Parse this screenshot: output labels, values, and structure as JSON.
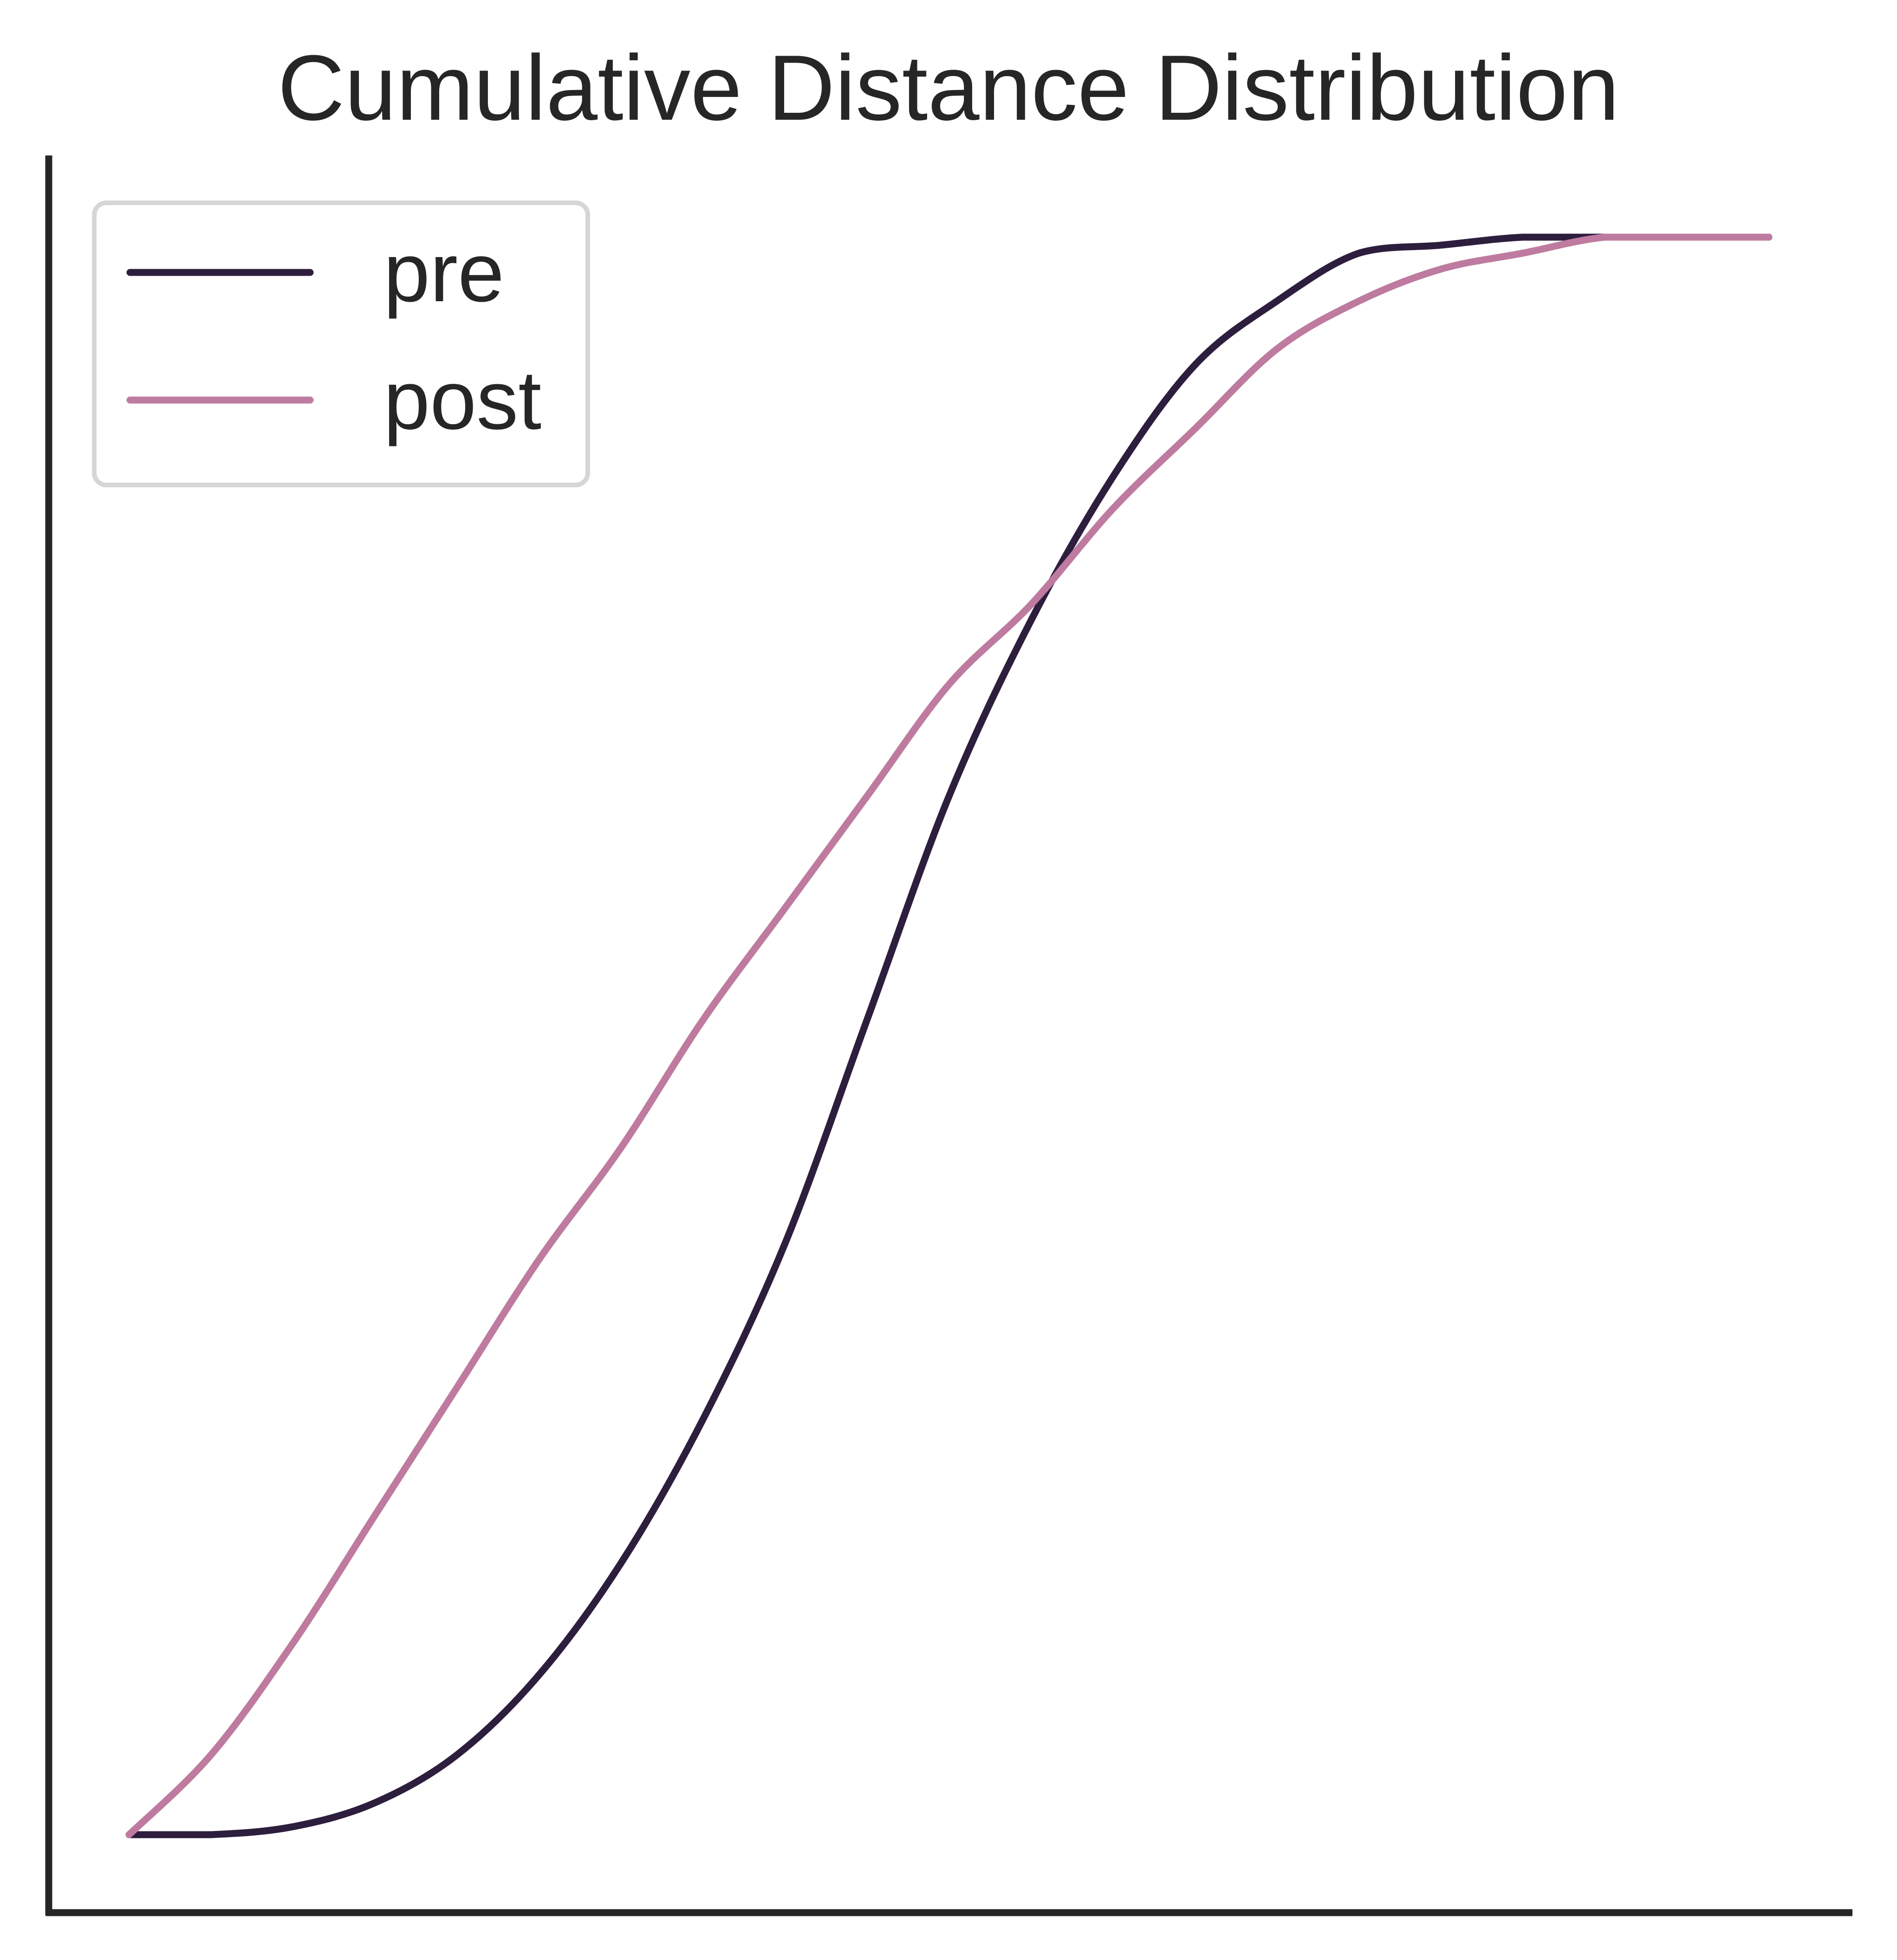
{
  "chart_data": {
    "type": "line",
    "title": "Cumulative Distance Distribution",
    "xlabel": "",
    "ylabel": "",
    "xlim": [
      0,
      1
    ],
    "ylim": [
      0,
      1
    ],
    "x_axis_visible": true,
    "y_axis_visible": true,
    "grid": false,
    "legend_position": "upper-left",
    "series": [
      {
        "name": "pre",
        "color": "#2d1e3e",
        "x": [
          0.0,
          0.05,
          0.1,
          0.15,
          0.2,
          0.25,
          0.3,
          0.35,
          0.4,
          0.45,
          0.5,
          0.55,
          0.6,
          0.65,
          0.7,
          0.75,
          0.8,
          0.85,
          0.9,
          0.95,
          1.0
        ],
        "y": [
          0.0,
          0.0,
          0.005,
          0.02,
          0.05,
          0.1,
          0.17,
          0.26,
          0.37,
          0.51,
          0.65,
          0.76,
          0.85,
          0.92,
          0.96,
          0.99,
          0.995,
          1.0,
          1.0,
          1.0,
          1.0
        ]
      },
      {
        "name": "post",
        "color": "#be7b9f",
        "x": [
          0.0,
          0.05,
          0.1,
          0.15,
          0.2,
          0.25,
          0.3,
          0.35,
          0.4,
          0.45,
          0.5,
          0.55,
          0.6,
          0.65,
          0.7,
          0.75,
          0.8,
          0.85,
          0.9,
          0.95,
          1.0
        ],
        "y": [
          0.0,
          0.05,
          0.12,
          0.2,
          0.28,
          0.36,
          0.43,
          0.51,
          0.58,
          0.65,
          0.72,
          0.77,
          0.83,
          0.88,
          0.93,
          0.96,
          0.98,
          0.99,
          1.0,
          1.0,
          1.0
        ]
      }
    ]
  }
}
